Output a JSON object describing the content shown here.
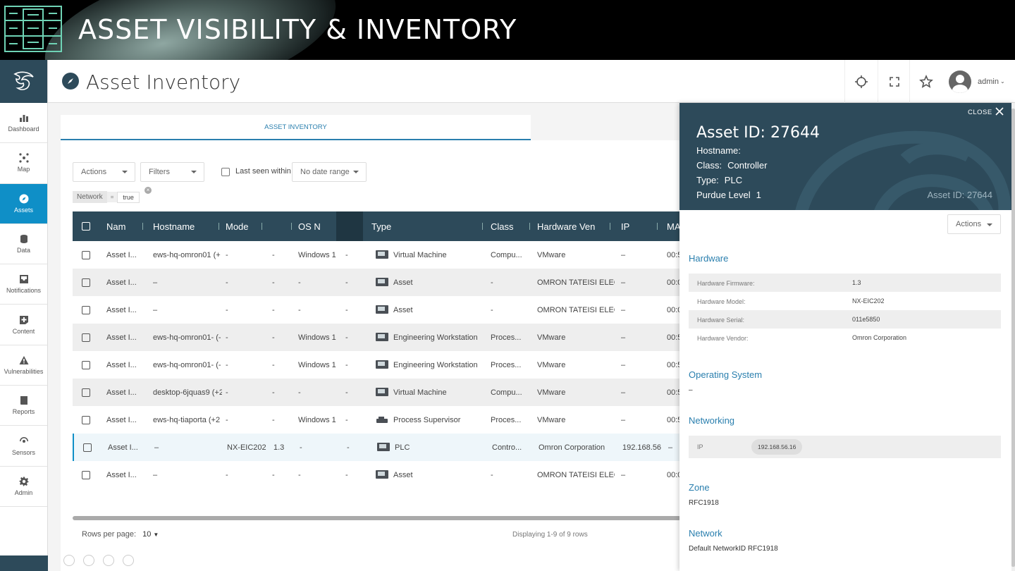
{
  "banner": {
    "title": "ASSET VISIBILITY & INVENTORY"
  },
  "nav": {
    "items": [
      {
        "label": "Dashboard",
        "icon": "dashboard-icon"
      },
      {
        "label": "Map",
        "icon": "map-icon"
      },
      {
        "label": "Assets",
        "icon": "compass-icon",
        "active": true
      },
      {
        "label": "Data",
        "icon": "database-icon"
      },
      {
        "label": "Notifications",
        "icon": "inbox-icon"
      },
      {
        "label": "Content",
        "icon": "content-icon"
      },
      {
        "label": "Vulnerabilities",
        "icon": "warning-icon"
      },
      {
        "label": "Reports",
        "icon": "book-icon"
      },
      {
        "label": "Sensors",
        "icon": "sensor-icon"
      },
      {
        "label": "Admin",
        "icon": "gear-icon"
      }
    ]
  },
  "header": {
    "title": "Asset Inventory",
    "user": "admin"
  },
  "tabs": {
    "active": "ASSET INVENTORY"
  },
  "toolbar": {
    "actions": "Actions",
    "filters": "Filters",
    "last_seen": "Last seen within",
    "date_range": "No date range"
  },
  "filter_chip": {
    "field": "Network",
    "op": "=",
    "value": "true"
  },
  "table": {
    "columns": [
      "Nam",
      "Hostname",
      "Mode",
      "",
      "OS N",
      "",
      "Type",
      "Class",
      "Hardware Ven",
      "IP",
      "MA"
    ],
    "rows": [
      {
        "name": "Asset I...",
        "hostname": "ews-hq-omron01 (+",
        "model": "-",
        "fw": "-",
        "os": "Windows 1(",
        "osv": "-",
        "type": "Virtual Machine",
        "class": "Compu...",
        "vendor": "VMware",
        "ip": "–",
        "mac": "00:5"
      },
      {
        "name": "Asset I...",
        "hostname": "–",
        "model": "-",
        "fw": "-",
        "os": "-",
        "osv": "-",
        "type": "Asset",
        "class": "-",
        "vendor": "OMRON TATEISI ELEC",
        "ip": "–",
        "mac": "00:0"
      },
      {
        "name": "Asset I...",
        "hostname": "–",
        "model": "-",
        "fw": "-",
        "os": "-",
        "osv": "-",
        "type": "Asset",
        "class": "-",
        "vendor": "OMRON TATEISI ELEC",
        "ip": "–",
        "mac": "00:0"
      },
      {
        "name": "Asset I...",
        "hostname": "ews-hq-omron01- (-",
        "model": "-",
        "fw": "-",
        "os": "Windows 1(",
        "osv": "-",
        "type": "Engineering Workstation",
        "class": "Proces...",
        "vendor": "VMware",
        "ip": "–",
        "mac": "00:5"
      },
      {
        "name": "Asset I...",
        "hostname": "ews-hq-omron01- (-",
        "model": "-",
        "fw": "-",
        "os": "Windows 1(",
        "osv": "-",
        "type": "Engineering Workstation",
        "class": "Proces...",
        "vendor": "VMware",
        "ip": "–",
        "mac": "00:5"
      },
      {
        "name": "Asset I...",
        "hostname": "desktop-6jquas9 (+2",
        "model": "-",
        "fw": "-",
        "os": "-",
        "osv": "-",
        "type": "Virtual Machine",
        "class": "Compu...",
        "vendor": "VMware",
        "ip": "–",
        "mac": "00:5"
      },
      {
        "name": "Asset I...",
        "hostname": "ews-hq-tiaporta (+2",
        "model": "-",
        "fw": "-",
        "os": "Windows 1(",
        "osv": "-",
        "type": "Process Supervisor",
        "class": "Proces...",
        "vendor": "VMware",
        "ip": "–",
        "mac": "00:5"
      },
      {
        "name": "Asset I...",
        "hostname": "–",
        "model": "NX-EIC202",
        "fw": "1.3",
        "os": "-",
        "osv": "-",
        "type": "PLC",
        "class": "Contro...",
        "vendor": "Omron Corporation",
        "ip": "192.168.56",
        "mac": "–"
      },
      {
        "name": "Asset I...",
        "hostname": "–",
        "model": "-",
        "fw": "-",
        "os": "-",
        "osv": "-",
        "type": "Asset",
        "class": "-",
        "vendor": "OMRON TATEISI ELEC",
        "ip": "–",
        "mac": "00:0"
      }
    ]
  },
  "footer": {
    "rows_label": "Rows per page:",
    "rows_value": "10",
    "display": "Displaying 1-9 of 9 rows"
  },
  "panel": {
    "close": "CLOSE",
    "title": "Asset ID: 27644",
    "hostname_label": "Hostname:",
    "hostname_value": "",
    "class_label": "Class:",
    "class_value": "Controller",
    "type_label": "Type:",
    "type_value": "PLC",
    "purdue_label": "Purdue Level",
    "purdue_value": "1",
    "id_right": "Asset ID: 27644",
    "actions": "Actions",
    "hardware": {
      "title": "Hardware",
      "rows": [
        {
          "k": "Hardware Firmware:",
          "v": "1.3"
        },
        {
          "k": "Hardware Model:",
          "v": "NX-EIC202"
        },
        {
          "k": "Hardware Serial:",
          "v": "011e5850"
        },
        {
          "k": "Hardware Vendor:",
          "v": "Omron Corporation"
        }
      ]
    },
    "os": {
      "title": "Operating System",
      "value": "–"
    },
    "networking": {
      "title": "Networking",
      "ip_label": "IP",
      "ip_value": "192.168.56.16"
    },
    "zone": {
      "title": "Zone",
      "value": "RFC1918"
    },
    "network": {
      "title": "Network",
      "value": "Default NetworkID RFC1918"
    }
  }
}
